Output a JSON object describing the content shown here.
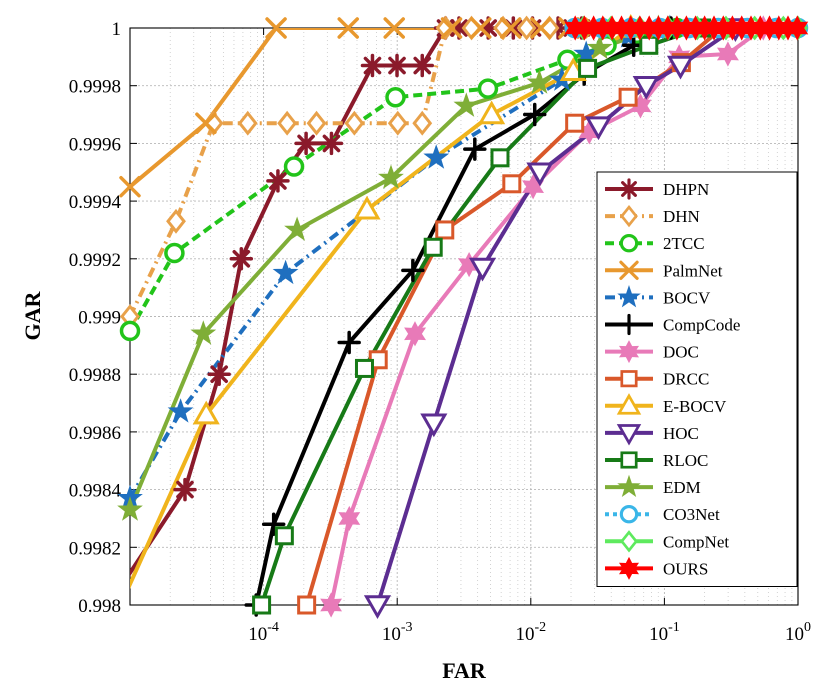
{
  "chart_data": {
    "type": "line",
    "title": "",
    "xlabel": "FAR",
    "ylabel": "GAR",
    "xscale": "log",
    "xlim": [
      1e-05,
      1
    ],
    "ylim": [
      0.998,
      1
    ],
    "grid": true,
    "legend_position": "right",
    "x_ticks": [
      {
        "value": 0.0001,
        "base": "10",
        "exp": "-4"
      },
      {
        "value": 0.001,
        "base": "10",
        "exp": "-3"
      },
      {
        "value": 0.01,
        "base": "10",
        "exp": "-2"
      },
      {
        "value": 0.1,
        "base": "10",
        "exp": "-1"
      },
      {
        "value": 1,
        "base": "10",
        "exp": "0"
      }
    ],
    "y_ticks": [
      {
        "value": 0.998,
        "label": "0.998"
      },
      {
        "value": 0.9982,
        "label": "0.9982"
      },
      {
        "value": 0.9984,
        "label": "0.9984"
      },
      {
        "value": 0.9986,
        "label": "0.9986"
      },
      {
        "value": 0.9988,
        "label": "0.9988"
      },
      {
        "value": 0.999,
        "label": "0.999"
      },
      {
        "value": 0.9992,
        "label": "0.9992"
      },
      {
        "value": 0.9994,
        "label": "0.9994"
      },
      {
        "value": 0.9996,
        "label": "0.9996"
      },
      {
        "value": 0.9998,
        "label": "0.9998"
      },
      {
        "value": 1,
        "label": "1"
      }
    ],
    "series": [
      {
        "name": "DHPN",
        "color": "#8b1a2b",
        "marker": "asterisk",
        "dash": "",
        "x": [
          5e-06,
          2.58e-05,
          4.65e-05,
          6.81e-05,
          0.000128,
          0.000208,
          0.000322,
          0.000653,
          0.000997,
          0.00154,
          0.0023,
          0.0029,
          0.0048,
          0.0074,
          0.0103,
          0.016,
          0.024
        ],
        "y": [
          0.9979,
          0.9984,
          0.9988,
          0.9992,
          0.99947,
          0.9996,
          0.9996,
          0.99987,
          0.99987,
          0.99987,
          1,
          1,
          1,
          1,
          1,
          1,
          1
        ]
      },
      {
        "name": "DHN",
        "color": "#e8a14a",
        "marker": "diamond",
        "dash": "10,5,2,5",
        "x": [
          1e-05,
          2.21e-05,
          4.22e-05,
          7.61e-05,
          0.00015,
          0.000249,
          0.000478,
          0.00101,
          0.00154,
          0.0023,
          0.0036,
          0.0062,
          0.0093,
          0.0138
        ],
        "y": [
          0.999,
          0.99933,
          0.99967,
          0.99967,
          0.99967,
          0.99967,
          0.99967,
          0.99967,
          0.99967,
          1,
          1,
          1,
          1,
          1
        ]
      },
      {
        "name": "2TCC",
        "color": "#22c41a",
        "marker": "circle",
        "dash": "9,5",
        "x": [
          1e-05,
          2.15e-05,
          0.000169,
          0.000971,
          0.00478,
          0.0188,
          0.0369,
          0.0624,
          0.124
        ],
        "y": [
          0.99895,
          0.99922,
          0.99952,
          0.99976,
          0.99979,
          0.99989,
          0.99994,
          0.99998,
          1
        ]
      },
      {
        "name": "PalmNet",
        "color": "#e8982e",
        "marker": "x",
        "dash": "",
        "x": [
          1e-05,
          3.7e-05,
          0.000124,
          0.00043,
          0.00095,
          0.00255,
          0.00422,
          0.00708,
          0.0119,
          0.0193,
          0.03
        ],
        "y": [
          0.99945,
          0.99967,
          1,
          1,
          1,
          1,
          1,
          1,
          1,
          1,
          1
        ]
      },
      {
        "name": "BOCV",
        "color": "#1f6fbf",
        "marker": "star",
        "dash": "10,5,2,5",
        "x": [
          1e-05,
          2.39e-05,
          0.000146,
          0.00196,
          0.0171,
          0.026,
          0.054,
          0.11
        ],
        "y": [
          0.99837,
          0.99867,
          0.99915,
          0.99955,
          0.99982,
          0.99991,
          0.99997,
          1
        ]
      },
      {
        "name": "CompCode",
        "color": "#000000",
        "marker": "plus",
        "dash": "",
        "x": [
          8.8e-05,
          0.000119,
          0.000437,
          0.00131,
          0.00381,
          0.0107,
          0.0251,
          0.0589,
          0.112
        ],
        "y": [
          0.998,
          0.99828,
          0.99891,
          0.99916,
          0.99958,
          0.9997,
          0.99984,
          0.99994,
          1
        ]
      },
      {
        "name": "DOC",
        "color": "#e87ab8",
        "marker": "star6",
        "dash": "",
        "x": [
          0.00032,
          0.000438,
          0.00136,
          0.00345,
          0.0104,
          0.0274,
          0.0662,
          0.129,
          0.299,
          0.55
        ],
        "y": [
          0.998,
          0.9983,
          0.99894,
          0.99918,
          0.99945,
          0.99964,
          0.99973,
          0.9999,
          0.99991,
          1
        ]
      },
      {
        "name": "DRCC",
        "color": "#d9582a",
        "marker": "square",
        "dash": "",
        "x": [
          0.00021,
          0.000721,
          0.00227,
          0.00721,
          0.0213,
          0.0535,
          0.134,
          0.27
        ],
        "y": [
          0.998,
          0.99885,
          0.9993,
          0.99946,
          0.99967,
          0.99976,
          0.99988,
          1
        ]
      },
      {
        "name": "E-BOCV",
        "color": "#f0b41c",
        "marker": "triangle",
        "dash": "",
        "x": [
          8.5e-06,
          3.72e-05,
          0.000594,
          0.00509,
          0.0208,
          0.056
        ],
        "y": [
          0.998,
          0.99866,
          0.99937,
          0.9997,
          0.99985,
          1
        ]
      },
      {
        "name": "HOC",
        "color": "#5c2d91",
        "marker": "triangledown",
        "dash": "",
        "x": [
          0.000712,
          0.00188,
          0.00435,
          0.0117,
          0.0321,
          0.0731,
          0.132,
          0.34
        ],
        "y": [
          0.998,
          0.99863,
          0.99917,
          0.9995,
          0.99966,
          0.9998,
          0.99987,
          1
        ]
      },
      {
        "name": "RLOC",
        "color": "#177a17",
        "marker": "square",
        "dash": "",
        "x": [
          9.66e-05,
          0.000143,
          0.000569,
          0.00186,
          0.00588,
          0.0266,
          0.0764,
          0.19
        ],
        "y": [
          0.998,
          0.99824,
          0.99882,
          0.99924,
          0.99955,
          0.99986,
          0.99994,
          1
        ]
      },
      {
        "name": "EDM",
        "color": "#7fae37",
        "marker": "star",
        "dash": "",
        "x": [
          1e-05,
          3.54e-05,
          0.000178,
          0.000898,
          0.00329,
          0.0116,
          0.0328,
          0.09
        ],
        "y": [
          0.99833,
          0.99894,
          0.9993,
          0.99948,
          0.99973,
          0.99981,
          0.99993,
          1
        ]
      },
      {
        "name": "CO3Net",
        "color": "#3ab6e8",
        "marker": "circle",
        "dash": "4,4",
        "x": [
          0.0213,
          0.0341,
          0.0561,
          0.0924,
          0.153,
          0.253,
          0.417,
          0.69,
          1
        ],
        "y": [
          1,
          1,
          1,
          1,
          1,
          1,
          1,
          1,
          1
        ]
      },
      {
        "name": "CompNet",
        "color": "#5eea5e",
        "marker": "diamond",
        "dash": "",
        "x": [
          0.0248,
          0.0399,
          0.0653,
          0.107,
          0.176,
          0.289,
          0.474,
          0.777,
          1
        ],
        "y": [
          1,
          1,
          1,
          1,
          1,
          1,
          1,
          1,
          1
        ]
      },
      {
        "name": "OURS",
        "color": "#ff0000",
        "marker": "star6",
        "dash": "",
        "x": [
          0.0215,
          0.0252,
          0.0295,
          0.0346,
          0.0406,
          0.0477,
          0.0559,
          0.0656,
          0.077,
          0.0903,
          0.106,
          0.124,
          0.146,
          0.171,
          0.2,
          0.235,
          0.276,
          0.323,
          0.379,
          0.445,
          0.522,
          0.612,
          0.718,
          0.842,
          0.988
        ],
        "y": [
          1,
          1,
          1,
          1,
          1,
          1,
          1,
          1,
          1,
          1,
          1,
          1,
          1,
          1,
          1,
          1,
          1,
          1,
          1,
          1,
          1,
          1,
          1,
          1,
          1
        ]
      }
    ]
  }
}
